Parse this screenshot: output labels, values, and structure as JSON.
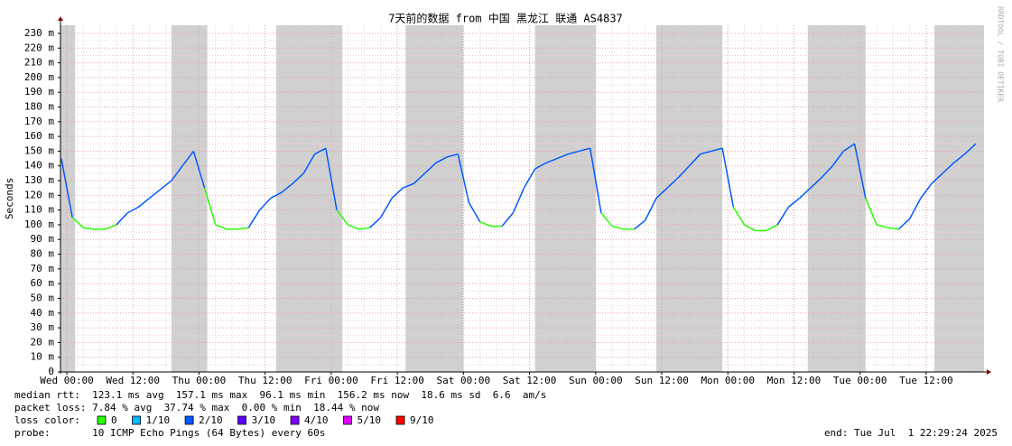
{
  "chart_data": {
    "type": "line",
    "title": "7天前的数据 from 中国 黑龙江 联通 AS4837",
    "y_label": "Seconds",
    "watermark": "RRDTOOL / TOBI OETIKER",
    "xlim": [
      -1.15,
      166.5
    ],
    "xticks": [
      {
        "value": 0,
        "label": "Wed 00:00"
      },
      {
        "value": 12,
        "label": "Wed 12:00"
      },
      {
        "value": 24,
        "label": "Thu 00:00"
      },
      {
        "value": 36,
        "label": "Thu 12:00"
      },
      {
        "value": 48,
        "label": "Fri 00:00"
      },
      {
        "value": 60,
        "label": "Fri 12:00"
      },
      {
        "value": 72,
        "label": "Sat 00:00"
      },
      {
        "value": 84,
        "label": "Sat 12:00"
      },
      {
        "value": 96,
        "label": "Sun 00:00"
      },
      {
        "value": 108,
        "label": "Sun 12:00"
      },
      {
        "value": 120,
        "label": "Mon 00:00"
      },
      {
        "value": 132,
        "label": "Mon 12:00"
      },
      {
        "value": 144,
        "label": "Tue 00:00"
      },
      {
        "value": 156,
        "label": "Tue 12:00"
      }
    ],
    "ylim": [
      0,
      0.2355
    ],
    "yticks": [
      0,
      {
        "value": 0.01,
        "label": "10 m"
      },
      {
        "value": 0.02,
        "label": "20 m"
      },
      {
        "value": 0.03,
        "label": "30 m"
      },
      {
        "value": 0.04,
        "label": "40 m"
      },
      {
        "value": 0.05,
        "label": "50 m"
      },
      {
        "value": 0.06,
        "label": "60 m"
      },
      {
        "value": 0.07,
        "label": "70 m"
      },
      {
        "value": 0.08,
        "label": "80 m"
      },
      {
        "value": 0.09,
        "label": "90 m"
      },
      {
        "value": 0.1,
        "label": "100 m"
      },
      {
        "value": 0.11,
        "label": "110 m"
      },
      {
        "value": 0.12,
        "label": "120 m"
      },
      {
        "value": 0.13,
        "label": "130 m"
      },
      {
        "value": 0.14,
        "label": "140 m"
      },
      {
        "value": 0.15,
        "label": "150 m"
      },
      {
        "value": 0.16,
        "label": "160 m"
      },
      {
        "value": 0.17,
        "label": "170 m"
      },
      {
        "value": 0.18,
        "label": "180 m"
      },
      {
        "value": 0.19,
        "label": "190 m"
      },
      {
        "value": 0.2,
        "label": "200 m"
      },
      {
        "value": 0.21,
        "label": "210 m"
      },
      {
        "value": 0.22,
        "label": "220 m"
      },
      {
        "value": 0.23,
        "label": "230 m"
      }
    ],
    "grid": true,
    "x": [
      -1,
      1,
      3,
      5,
      7,
      9,
      11,
      13,
      15,
      17,
      19,
      21,
      23,
      25,
      27,
      29,
      31,
      33,
      35,
      37,
      39,
      41,
      43,
      45,
      47,
      49,
      51,
      53,
      55,
      57,
      59,
      61,
      63,
      65,
      67,
      69,
      71,
      73,
      75,
      77,
      79,
      81,
      83,
      85,
      87,
      89,
      91,
      93,
      95,
      97,
      99,
      101,
      103,
      105,
      107,
      109,
      111,
      113,
      115,
      117,
      119,
      121,
      123,
      125,
      127,
      129,
      131,
      133,
      135,
      137,
      139,
      141,
      143,
      145,
      147,
      149,
      151,
      153,
      155,
      157,
      159,
      161,
      163,
      165
    ],
    "median": {
      "values": [
        0.145,
        0.105,
        0.098,
        0.097,
        0.097,
        0.1,
        0.108,
        0.112,
        0.118,
        0.124,
        0.13,
        0.14,
        0.15,
        0.125,
        0.1,
        0.097,
        0.097,
        0.098,
        0.11,
        0.118,
        0.122,
        0.128,
        0.135,
        0.148,
        0.152,
        0.11,
        0.1,
        0.097,
        0.098,
        0.105,
        0.118,
        0.125,
        0.128,
        0.135,
        0.142,
        0.146,
        0.148,
        0.115,
        0.102,
        0.099,
        0.099,
        0.108,
        0.125,
        0.138,
        0.142,
        0.145,
        0.148,
        0.15,
        0.152,
        0.108,
        0.099,
        0.097,
        0.097,
        0.103,
        0.118,
        0.125,
        0.132,
        0.14,
        0.148,
        0.15,
        0.152,
        0.112,
        0.1,
        0.096,
        0.096,
        0.1,
        0.112,
        0.118,
        0.125,
        0.132,
        0.14,
        0.15,
        0.155,
        0.118,
        0.1,
        0.098,
        0.097,
        0.104,
        0.118,
        0.128,
        0.135,
        0.142,
        0.148,
        0.155
      ],
      "loss": [
        2,
        2,
        0,
        0,
        0,
        0,
        2,
        2,
        2,
        2,
        2,
        2,
        2,
        2,
        0,
        0,
        0,
        0,
        2,
        2,
        2,
        2,
        2,
        2,
        2,
        2,
        0,
        0,
        0,
        2,
        2,
        2,
        2,
        2,
        2,
        2,
        2,
        2,
        2,
        0,
        0,
        2,
        2,
        2,
        2,
        2,
        2,
        2,
        2,
        2,
        0,
        0,
        0,
        2,
        2,
        2,
        2,
        2,
        2,
        2,
        2,
        2,
        0,
        0,
        0,
        0,
        2,
        2,
        2,
        2,
        2,
        2,
        2,
        2,
        0,
        0,
        0,
        2,
        2,
        2,
        2,
        2,
        2,
        2
      ]
    },
    "loss_spans": [
      [
        -1.15,
        1.5
      ],
      [
        19,
        25.5
      ],
      [
        38,
        50
      ],
      [
        61.5,
        72
      ],
      [
        85,
        96
      ],
      [
        107,
        119
      ],
      [
        134.5,
        145
      ],
      [
        157.5,
        166.5
      ]
    ],
    "loss_span_color": "#c8c8c8",
    "stats": {
      "median_rtt": "median rtt:  123.1 ms avg  157.1 ms max  96.1 ms min  156.2 ms now  18.6 ms sd  6.6  am/s",
      "packet_loss": "packet loss: 7.84 % avg  37.74 % max  0.00 % min  18.44 % now",
      "loss_color_label": "loss color:",
      "probe": "probe:       10 ICMP Echo Pings (64 Bytes) every 60s",
      "end": "end: Tue Jul  1 22:29:24 2025"
    },
    "loss_colors": [
      {
        "label": "0",
        "color": "#26ff00"
      },
      {
        "label": "1/10",
        "color": "#00b8ff"
      },
      {
        "label": "2/10",
        "color": "#0059ff"
      },
      {
        "label": "3/10",
        "color": "#5e00ff"
      },
      {
        "label": "4/10",
        "color": "#7e00ff"
      },
      {
        "label": "5/10",
        "color": "#dd00ff"
      },
      {
        "label": "9/10",
        "color": "#ff0000"
      }
    ]
  }
}
